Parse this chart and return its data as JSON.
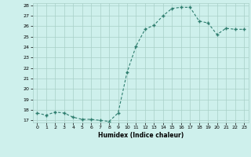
{
  "x": [
    0,
    1,
    2,
    3,
    4,
    5,
    6,
    7,
    8,
    9,
    10,
    11,
    12,
    13,
    14,
    15,
    16,
    17,
    18,
    19,
    20,
    21,
    22,
    23
  ],
  "y": [
    17.7,
    17.5,
    17.8,
    17.7,
    17.3,
    17.1,
    17.1,
    17.0,
    16.9,
    17.7,
    21.6,
    24.1,
    25.7,
    26.1,
    27.0,
    27.7,
    27.8,
    27.8,
    26.5,
    26.3,
    25.2,
    25.8,
    25.7,
    25.7
  ],
  "xlabel": "Humidex (Indice chaleur)",
  "ylim": [
    17,
    28
  ],
  "xlim": [
    -0.5,
    23.5
  ],
  "yticks": [
    17,
    18,
    19,
    20,
    21,
    22,
    23,
    24,
    25,
    26,
    27,
    28
  ],
  "xticks": [
    0,
    1,
    2,
    3,
    4,
    5,
    6,
    7,
    8,
    9,
    10,
    11,
    12,
    13,
    14,
    15,
    16,
    17,
    18,
    19,
    20,
    21,
    22,
    23
  ],
  "line_color": "#2e7d6e",
  "marker_color": "#2e7d6e",
  "bg_color": "#cef0ec",
  "grid_color": "#a8cfc8"
}
